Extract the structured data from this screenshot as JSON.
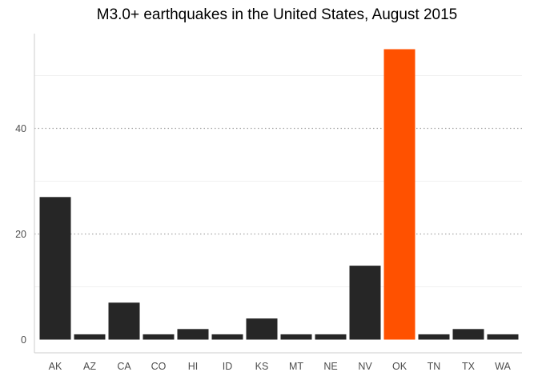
{
  "chart_data": {
    "type": "bar",
    "title": "M3.0+ earthquakes in the United States, August 2015",
    "xlabel": "",
    "ylabel": "",
    "categories": [
      "AK",
      "AZ",
      "CA",
      "CO",
      "HI",
      "ID",
      "KS",
      "MT",
      "NE",
      "NV",
      "OK",
      "TN",
      "TX",
      "WA"
    ],
    "values": [
      27,
      1,
      7,
      1,
      2,
      1,
      4,
      1,
      1,
      14,
      55,
      1,
      2,
      1
    ],
    "highlight": "OK",
    "ylim": [
      0,
      57.5
    ],
    "yticks": [
      0,
      20,
      40
    ],
    "y_minor_gridlines": [
      10,
      30,
      50
    ],
    "grid": true,
    "legend": "none",
    "colors": {
      "bar": "#262626",
      "highlight": "#ff5100",
      "major_grid": "#a6a6a6",
      "minor_grid": "#f0f0f0",
      "axis": "#cccccc"
    }
  }
}
